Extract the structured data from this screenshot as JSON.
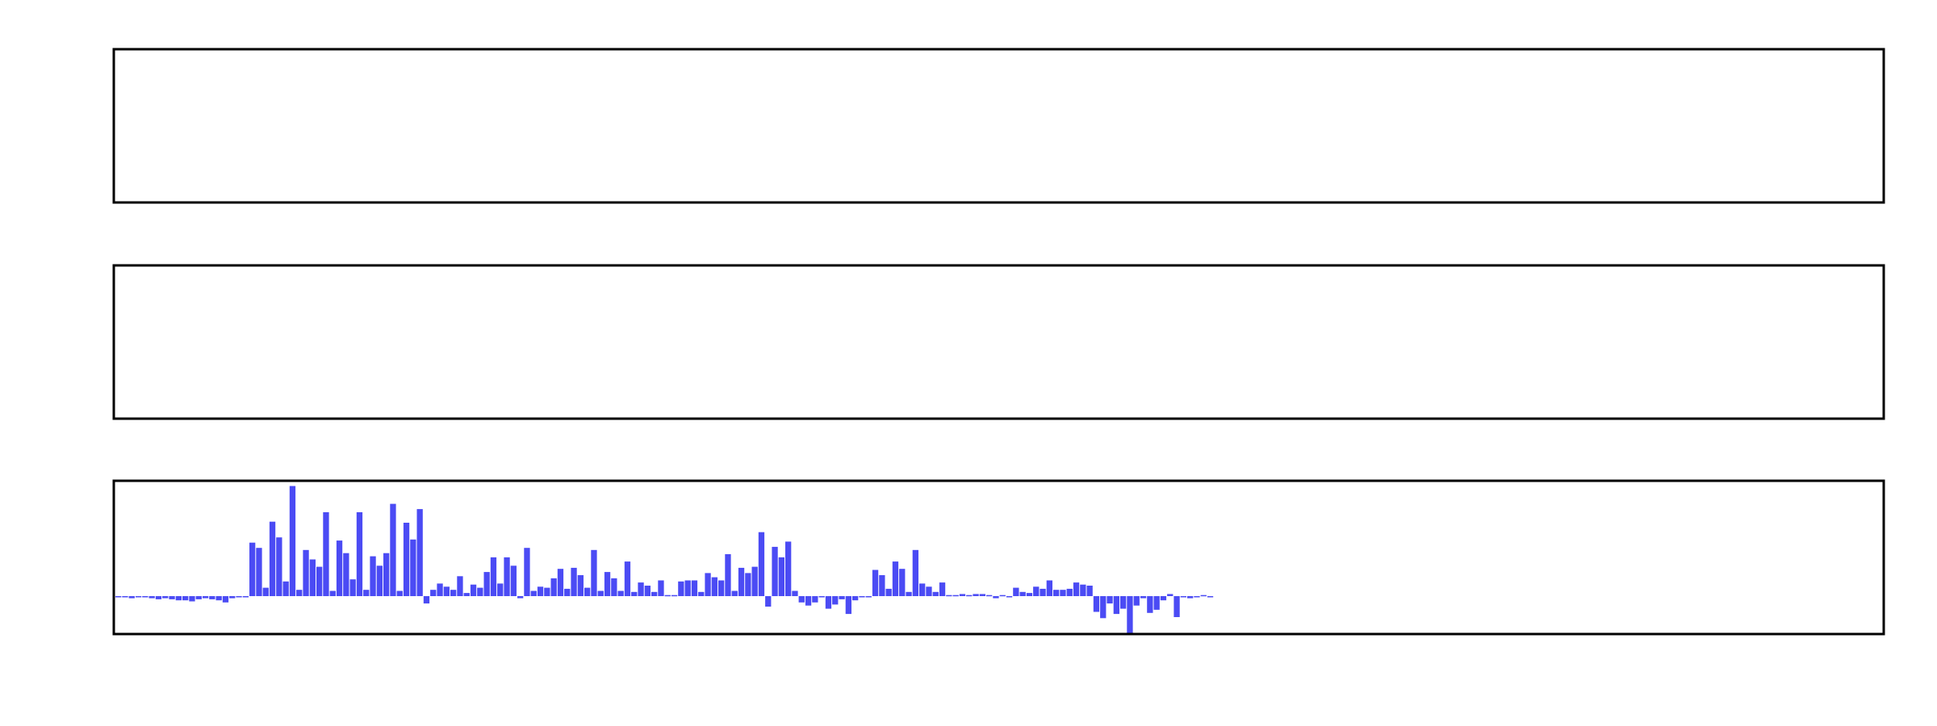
{
  "chart_data": [
    {
      "type": "bar",
      "panel": "top",
      "xlim": [
        0,
        500
      ],
      "ylim": [
        -1,
        1
      ],
      "values": [],
      "grid": false,
      "legend": "none"
    },
    {
      "type": "bar",
      "panel": "middle",
      "xlim": [
        0,
        500
      ],
      "ylim": [
        -1,
        1
      ],
      "values": [],
      "grid": false,
      "legend": "none"
    },
    {
      "type": "bar",
      "panel": "bottom",
      "xlim": [
        0,
        500
      ],
      "ylim": [
        -1,
        1
      ],
      "zero": 0,
      "grid": false,
      "legend": "none",
      "color": "#4b4bf4",
      "values": [
        -0.01,
        -0.01,
        -0.02,
        -0.01,
        -0.01,
        -0.02,
        -0.03,
        -0.02,
        -0.03,
        -0.04,
        -0.04,
        -0.05,
        -0.03,
        -0.02,
        -0.03,
        -0.04,
        -0.06,
        -0.02,
        -0.01,
        -0.01,
        0.51,
        0.46,
        0.08,
        0.71,
        0.56,
        0.14,
        1.05,
        0.06,
        0.44,
        0.35,
        0.28,
        0.8,
        0.05,
        0.53,
        0.41,
        0.16,
        0.8,
        0.06,
        0.38,
        0.29,
        0.41,
        0.88,
        0.05,
        0.7,
        0.54,
        0.83,
        -0.07,
        0.06,
        0.12,
        0.09,
        0.06,
        0.19,
        0.03,
        0.11,
        0.08,
        0.23,
        0.37,
        0.12,
        0.37,
        0.29,
        -0.02,
        0.46,
        0.05,
        0.09,
        0.08,
        0.17,
        0.26,
        0.07,
        0.27,
        0.2,
        0.08,
        0.44,
        0.05,
        0.23,
        0.17,
        0.05,
        0.33,
        0.04,
        0.13,
        0.1,
        0.04,
        0.15,
        0.01,
        0.01,
        0.14,
        0.15,
        0.15,
        0.04,
        0.22,
        0.18,
        0.15,
        0.4,
        0.05,
        0.27,
        0.22,
        0.28,
        0.61,
        -0.1,
        0.47,
        0.37,
        0.52,
        0.05,
        -0.06,
        -0.09,
        -0.06,
        0.0,
        -0.12,
        -0.08,
        -0.03,
        -0.17,
        -0.04,
        -0.01,
        0.0,
        0.25,
        0.2,
        0.07,
        0.33,
        0.26,
        0.04,
        0.44,
        0.12,
        0.09,
        0.04,
        0.13,
        0.01,
        0.01,
        0.02,
        0.01,
        0.02,
        0.02,
        0.01,
        -0.02,
        0.01,
        -0.01,
        0.08,
        0.04,
        0.03,
        0.09,
        0.07,
        0.15,
        0.06,
        0.06,
        0.07,
        0.13,
        0.11,
        0.1,
        -0.15,
        -0.21,
        -0.07,
        -0.17,
        -0.12,
        -0.36,
        -0.09,
        -0.02,
        -0.16,
        -0.13,
        -0.04,
        0.02,
        -0.2,
        -0.01,
        -0.02,
        0.0,
        0.01,
        0.0
      ]
    }
  ]
}
